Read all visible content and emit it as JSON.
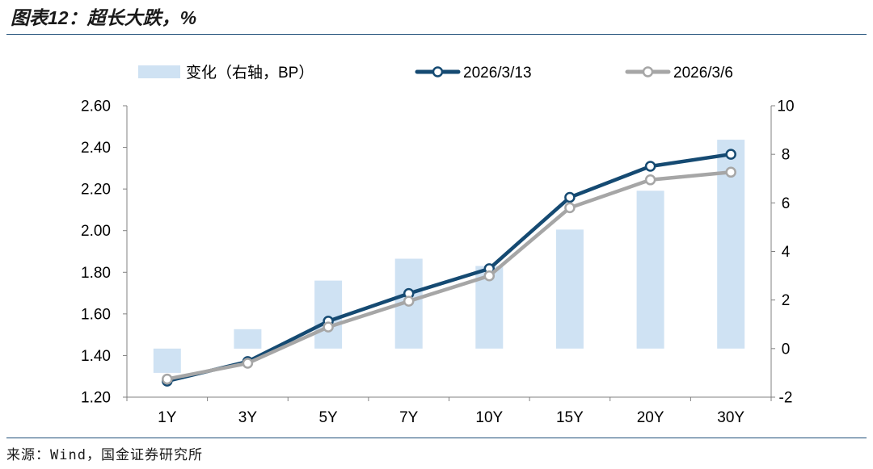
{
  "chart_data": {
    "type": "line",
    "title": "图表12：超长大跌，%",
    "categories": [
      "1Y",
      "3Y",
      "5Y",
      "7Y",
      "10Y",
      "15Y",
      "20Y",
      "30Y"
    ],
    "series": [
      {
        "name": "变化（右轴，BP）",
        "type": "bar",
        "y_axis": "right",
        "color": "#cfe2f3",
        "values": [
          -1.0,
          0.8,
          2.8,
          3.7,
          3.4,
          4.9,
          6.5,
          8.6
        ]
      },
      {
        "name": "2026/3/13",
        "type": "line",
        "y_axis": "left",
        "color": "#154a72",
        "values": [
          1.277,
          1.371,
          1.565,
          1.698,
          1.817,
          2.16,
          2.309,
          2.367
        ]
      },
      {
        "name": "2026/3/6",
        "type": "line",
        "y_axis": "left",
        "color": "#a6a6a6",
        "values": [
          1.287,
          1.363,
          1.537,
          1.661,
          1.783,
          2.11,
          2.244,
          2.281
        ]
      }
    ],
    "y_left": {
      "min": 1.2,
      "max": 2.6,
      "tick_labels": [
        "1.20",
        "1.40",
        "1.60",
        "1.80",
        "2.00",
        "2.20",
        "2.40",
        "2.60"
      ]
    },
    "y_right": {
      "min": -2,
      "max": 10,
      "tick_labels": [
        "-2",
        "0",
        "2",
        "4",
        "6",
        "8",
        "10"
      ]
    },
    "legend": "top",
    "grid": false
  },
  "source": "来源：Wind，国金证券研究所",
  "colors": {
    "rule": "#1f4e79",
    "axis": "#808080"
  }
}
